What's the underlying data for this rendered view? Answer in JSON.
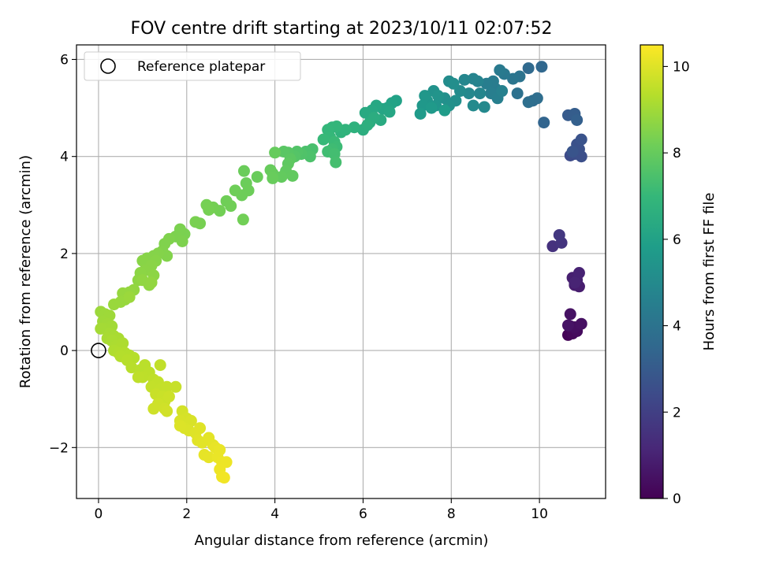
{
  "chart_data": {
    "type": "scatter",
    "title": "FOV centre drift starting at 2023/10/11 02:07:52",
    "xlabel": "Angular distance from reference (arcmin)",
    "ylabel": "Rotation from reference (arcmin)",
    "xlim": [
      -0.5,
      11.5
    ],
    "ylim": [
      -3.05,
      6.3
    ],
    "xticks": [
      0,
      2,
      4,
      6,
      8,
      10
    ],
    "yticks": [
      -2,
      0,
      2,
      4,
      6
    ],
    "xtick_labels": [
      "0",
      "2",
      "4",
      "6",
      "8",
      "10"
    ],
    "ytick_labels": [
      "−2",
      "0",
      "2",
      "4",
      "6"
    ],
    "grid": true,
    "legend": {
      "placement": "top-left",
      "entries": [
        {
          "label": "Reference platepar",
          "marker": "open-circle"
        }
      ]
    },
    "reference_point": {
      "x": 0,
      "y": 0
    },
    "colorbar": {
      "label": "Hours from first FF file",
      "range": [
        0,
        10.5
      ],
      "ticks": [
        0,
        2,
        4,
        6,
        8,
        10
      ],
      "tick_labels": [
        "0",
        "2",
        "4",
        "6",
        "8",
        "10"
      ],
      "colormap": "viridis",
      "stops": [
        "#440154",
        "#482878",
        "#3e4989",
        "#31688e",
        "#26828e",
        "#1f9e89",
        "#35b779",
        "#6ece58",
        "#b5de2b",
        "#fde725"
      ]
    },
    "points": [
      {
        "x": 10.65,
        "y": 0.32,
        "t": 0.1
      },
      {
        "x": 10.75,
        "y": 0.35,
        "t": 0.2
      },
      {
        "x": 10.85,
        "y": 0.4,
        "t": 0.3
      },
      {
        "x": 10.7,
        "y": 0.5,
        "t": 0.35
      },
      {
        "x": 10.8,
        "y": 0.48,
        "t": 0.4
      },
      {
        "x": 10.95,
        "y": 0.55,
        "t": 0.45
      },
      {
        "x": 10.7,
        "y": 0.75,
        "t": 0.5
      },
      {
        "x": 10.65,
        "y": 0.52,
        "t": 0.55
      },
      {
        "x": 10.8,
        "y": 1.35,
        "t": 0.8
      },
      {
        "x": 10.9,
        "y": 1.32,
        "t": 0.85
      },
      {
        "x": 10.75,
        "y": 1.5,
        "t": 0.9
      },
      {
        "x": 10.85,
        "y": 1.45,
        "t": 0.95
      },
      {
        "x": 10.9,
        "y": 1.6,
        "t": 1.0
      },
      {
        "x": 10.8,
        "y": 1.4,
        "t": 1.05
      },
      {
        "x": 10.3,
        "y": 2.15,
        "t": 1.5
      },
      {
        "x": 10.5,
        "y": 2.22,
        "t": 1.6
      },
      {
        "x": 10.45,
        "y": 2.38,
        "t": 1.7
      },
      {
        "x": 10.7,
        "y": 4.02,
        "t": 2.4
      },
      {
        "x": 10.8,
        "y": 4.05,
        "t": 2.5
      },
      {
        "x": 10.95,
        "y": 4.0,
        "t": 2.55
      },
      {
        "x": 10.9,
        "y": 4.15,
        "t": 2.6
      },
      {
        "x": 10.85,
        "y": 4.25,
        "t": 2.65
      },
      {
        "x": 10.95,
        "y": 4.35,
        "t": 2.7
      },
      {
        "x": 10.75,
        "y": 4.1,
        "t": 2.75
      },
      {
        "x": 10.65,
        "y": 4.85,
        "t": 3.0
      },
      {
        "x": 10.8,
        "y": 4.88,
        "t": 3.1
      },
      {
        "x": 10.85,
        "y": 4.75,
        "t": 3.2
      },
      {
        "x": 10.1,
        "y": 4.7,
        "t": 3.4
      },
      {
        "x": 10.05,
        "y": 5.85,
        "t": 3.5
      },
      {
        "x": 9.75,
        "y": 5.82,
        "t": 3.6
      },
      {
        "x": 9.85,
        "y": 5.15,
        "t": 3.7
      },
      {
        "x": 9.95,
        "y": 5.2,
        "t": 3.75
      },
      {
        "x": 9.75,
        "y": 5.12,
        "t": 3.8
      },
      {
        "x": 9.5,
        "y": 5.3,
        "t": 3.9
      },
      {
        "x": 9.55,
        "y": 5.65,
        "t": 4.0
      },
      {
        "x": 9.4,
        "y": 5.6,
        "t": 4.1
      },
      {
        "x": 9.2,
        "y": 5.7,
        "t": 4.2
      },
      {
        "x": 9.1,
        "y": 5.78,
        "t": 4.3
      },
      {
        "x": 9.0,
        "y": 5.4,
        "t": 4.35
      },
      {
        "x": 8.95,
        "y": 5.55,
        "t": 4.4
      },
      {
        "x": 8.8,
        "y": 5.5,
        "t": 4.45
      },
      {
        "x": 8.9,
        "y": 5.3,
        "t": 4.5
      },
      {
        "x": 9.05,
        "y": 5.2,
        "t": 4.55
      },
      {
        "x": 9.15,
        "y": 5.35,
        "t": 4.6
      },
      {
        "x": 8.6,
        "y": 5.55,
        "t": 4.7
      },
      {
        "x": 8.5,
        "y": 5.6,
        "t": 4.75
      },
      {
        "x": 8.65,
        "y": 5.3,
        "t": 4.8
      },
      {
        "x": 8.3,
        "y": 5.58,
        "t": 4.85
      },
      {
        "x": 8.4,
        "y": 5.3,
        "t": 4.9
      },
      {
        "x": 8.75,
        "y": 5.02,
        "t": 4.95
      },
      {
        "x": 8.5,
        "y": 5.05,
        "t": 5.0
      },
      {
        "x": 8.2,
        "y": 5.35,
        "t": 5.05
      },
      {
        "x": 7.95,
        "y": 5.55,
        "t": 5.1
      },
      {
        "x": 8.05,
        "y": 5.5,
        "t": 5.15
      },
      {
        "x": 8.1,
        "y": 5.15,
        "t": 5.2
      },
      {
        "x": 7.85,
        "y": 5.2,
        "t": 5.25
      },
      {
        "x": 7.95,
        "y": 5.05,
        "t": 5.3
      },
      {
        "x": 7.6,
        "y": 5.35,
        "t": 5.35
      },
      {
        "x": 7.7,
        "y": 5.25,
        "t": 5.4
      },
      {
        "x": 7.65,
        "y": 5.05,
        "t": 5.45
      },
      {
        "x": 7.45,
        "y": 5.15,
        "t": 5.5
      },
      {
        "x": 7.4,
        "y": 5.25,
        "t": 5.55
      },
      {
        "x": 7.35,
        "y": 5.05,
        "t": 5.6
      },
      {
        "x": 7.55,
        "y": 5.0,
        "t": 5.65
      },
      {
        "x": 7.3,
        "y": 4.88,
        "t": 5.7
      },
      {
        "x": 7.85,
        "y": 4.95,
        "t": 5.75
      },
      {
        "x": 6.75,
        "y": 5.15,
        "t": 6.0
      },
      {
        "x": 6.65,
        "y": 5.1,
        "t": 6.05
      },
      {
        "x": 6.55,
        "y": 5.0,
        "t": 6.1
      },
      {
        "x": 6.45,
        "y": 4.98,
        "t": 6.15
      },
      {
        "x": 6.6,
        "y": 4.92,
        "t": 6.2
      },
      {
        "x": 6.3,
        "y": 5.05,
        "t": 6.25
      },
      {
        "x": 6.2,
        "y": 4.95,
        "t": 6.3
      },
      {
        "x": 6.05,
        "y": 4.9,
        "t": 6.35
      },
      {
        "x": 6.4,
        "y": 4.75,
        "t": 6.4
      },
      {
        "x": 6.15,
        "y": 4.7,
        "t": 6.45
      },
      {
        "x": 6.25,
        "y": 4.8,
        "t": 6.5
      },
      {
        "x": 6.0,
        "y": 4.55,
        "t": 6.55
      },
      {
        "x": 6.1,
        "y": 4.65,
        "t": 6.6
      },
      {
        "x": 5.8,
        "y": 4.6,
        "t": 6.7
      },
      {
        "x": 5.5,
        "y": 4.5,
        "t": 6.75
      },
      {
        "x": 5.6,
        "y": 4.55,
        "t": 6.8
      },
      {
        "x": 5.3,
        "y": 4.6,
        "t": 6.85
      },
      {
        "x": 5.4,
        "y": 4.62,
        "t": 6.9
      },
      {
        "x": 5.2,
        "y": 4.55,
        "t": 6.95
      },
      {
        "x": 5.25,
        "y": 4.4,
        "t": 7.0
      },
      {
        "x": 5.1,
        "y": 4.35,
        "t": 7.05
      },
      {
        "x": 5.35,
        "y": 4.3,
        "t": 7.1
      },
      {
        "x": 5.4,
        "y": 4.2,
        "t": 7.15
      },
      {
        "x": 5.3,
        "y": 4.15,
        "t": 7.2
      },
      {
        "x": 5.2,
        "y": 4.1,
        "t": 7.25
      },
      {
        "x": 5.35,
        "y": 4.05,
        "t": 7.3
      },
      {
        "x": 5.38,
        "y": 3.88,
        "t": 7.35
      },
      {
        "x": 4.85,
        "y": 4.15,
        "t": 7.4
      },
      {
        "x": 4.7,
        "y": 4.1,
        "t": 7.45
      },
      {
        "x": 4.8,
        "y": 4.0,
        "t": 7.5
      },
      {
        "x": 4.6,
        "y": 4.05,
        "t": 7.55
      },
      {
        "x": 4.5,
        "y": 4.1,
        "t": 7.6
      },
      {
        "x": 4.45,
        "y": 4.0,
        "t": 7.65
      },
      {
        "x": 4.3,
        "y": 4.08,
        "t": 7.7
      },
      {
        "x": 4.2,
        "y": 4.1,
        "t": 7.75
      },
      {
        "x": 4.35,
        "y": 3.95,
        "t": 7.8
      },
      {
        "x": 4.3,
        "y": 3.85,
        "t": 7.85
      },
      {
        "x": 4.25,
        "y": 3.7,
        "t": 7.9
      },
      {
        "x": 4.4,
        "y": 3.6,
        "t": 7.92
      },
      {
        "x": 4.15,
        "y": 3.58,
        "t": 7.95
      },
      {
        "x": 3.95,
        "y": 3.65,
        "t": 7.98
      },
      {
        "x": 4.0,
        "y": 4.08,
        "t": 8.0
      },
      {
        "x": 3.9,
        "y": 3.72,
        "t": 8.02
      },
      {
        "x": 3.95,
        "y": 3.55,
        "t": 8.04
      },
      {
        "x": 3.6,
        "y": 3.58,
        "t": 8.06
      },
      {
        "x": 3.3,
        "y": 3.7,
        "t": 8.08
      },
      {
        "x": 3.35,
        "y": 3.45,
        "t": 8.1
      },
      {
        "x": 3.4,
        "y": 3.3,
        "t": 8.12
      },
      {
        "x": 3.25,
        "y": 3.2,
        "t": 8.14
      },
      {
        "x": 3.1,
        "y": 3.3,
        "t": 8.16
      },
      {
        "x": 2.9,
        "y": 3.08,
        "t": 8.18
      },
      {
        "x": 3.0,
        "y": 2.98,
        "t": 8.2
      },
      {
        "x": 3.28,
        "y": 2.7,
        "t": 8.22
      },
      {
        "x": 2.75,
        "y": 2.88,
        "t": 8.24
      },
      {
        "x": 2.6,
        "y": 2.95,
        "t": 8.26
      },
      {
        "x": 2.45,
        "y": 3.0,
        "t": 8.28
      },
      {
        "x": 2.5,
        "y": 2.9,
        "t": 8.3
      },
      {
        "x": 2.3,
        "y": 2.62,
        "t": 8.32
      },
      {
        "x": 2.2,
        "y": 2.65,
        "t": 8.34
      },
      {
        "x": 1.95,
        "y": 2.4,
        "t": 8.36
      },
      {
        "x": 1.85,
        "y": 2.5,
        "t": 8.38
      },
      {
        "x": 1.75,
        "y": 2.35,
        "t": 8.4
      },
      {
        "x": 1.9,
        "y": 2.25,
        "t": 8.42
      },
      {
        "x": 1.6,
        "y": 2.3,
        "t": 8.44
      },
      {
        "x": 1.5,
        "y": 2.2,
        "t": 8.46
      },
      {
        "x": 1.45,
        "y": 2.05,
        "t": 8.48
      },
      {
        "x": 1.55,
        "y": 1.95,
        "t": 8.5
      },
      {
        "x": 1.35,
        "y": 2.0,
        "t": 8.52
      },
      {
        "x": 1.25,
        "y": 1.95,
        "t": 8.54
      },
      {
        "x": 1.1,
        "y": 1.9,
        "t": 8.56
      },
      {
        "x": 1.3,
        "y": 1.85,
        "t": 8.58
      },
      {
        "x": 1.0,
        "y": 1.85,
        "t": 8.6
      },
      {
        "x": 1.2,
        "y": 1.75,
        "t": 8.62
      },
      {
        "x": 1.05,
        "y": 1.65,
        "t": 8.64
      },
      {
        "x": 0.95,
        "y": 1.6,
        "t": 8.66
      },
      {
        "x": 1.25,
        "y": 1.55,
        "t": 8.68
      },
      {
        "x": 0.9,
        "y": 1.45,
        "t": 8.7
      },
      {
        "x": 1.15,
        "y": 1.35,
        "t": 8.72
      },
      {
        "x": 1.0,
        "y": 1.45,
        "t": 8.74
      },
      {
        "x": 1.2,
        "y": 1.4,
        "t": 8.76
      },
      {
        "x": 0.8,
        "y": 1.25,
        "t": 8.78
      },
      {
        "x": 0.7,
        "y": 1.2,
        "t": 8.8
      },
      {
        "x": 0.55,
        "y": 1.18,
        "t": 8.82
      },
      {
        "x": 0.6,
        "y": 1.05,
        "t": 8.84
      },
      {
        "x": 0.5,
        "y": 1.0,
        "t": 8.86
      },
      {
        "x": 0.35,
        "y": 0.95,
        "t": 8.88
      },
      {
        "x": 0.7,
        "y": 1.1,
        "t": 8.9
      },
      {
        "x": 0.05,
        "y": 0.8,
        "t": 8.92
      },
      {
        "x": 0.15,
        "y": 0.75,
        "t": 8.94
      },
      {
        "x": 0.25,
        "y": 0.72,
        "t": 8.96
      },
      {
        "x": 0.1,
        "y": 0.6,
        "t": 8.98
      },
      {
        "x": 0.2,
        "y": 0.55,
        "t": 9.0
      },
      {
        "x": 0.3,
        "y": 0.5,
        "t": 9.02
      },
      {
        "x": 0.15,
        "y": 0.45,
        "t": 9.04
      },
      {
        "x": 0.05,
        "y": 0.45,
        "t": 9.06
      },
      {
        "x": 0.25,
        "y": 0.35,
        "t": 9.08
      },
      {
        "x": 0.35,
        "y": 0.3,
        "t": 9.1
      },
      {
        "x": 0.2,
        "y": 0.25,
        "t": 9.12
      },
      {
        "x": 0.45,
        "y": 0.25,
        "t": 9.14
      },
      {
        "x": 0.3,
        "y": 0.2,
        "t": 9.16
      },
      {
        "x": 0.4,
        "y": 0.1,
        "t": 9.18
      },
      {
        "x": 0.55,
        "y": 0.15,
        "t": 9.2
      },
      {
        "x": 0.5,
        "y": 0.05,
        "t": 9.22
      },
      {
        "x": 0.35,
        "y": 0.0,
        "t": 9.24
      },
      {
        "x": 0.45,
        "y": -0.05,
        "t": 9.26
      },
      {
        "x": 0.6,
        "y": -0.05,
        "t": 9.28
      },
      {
        "x": 0.7,
        "y": -0.1,
        "t": 9.3
      },
      {
        "x": 0.5,
        "y": -0.12,
        "t": 9.32
      },
      {
        "x": 0.8,
        "y": -0.15,
        "t": 9.34
      },
      {
        "x": 0.65,
        "y": -0.2,
        "t": 9.36
      },
      {
        "x": 0.75,
        "y": -0.35,
        "t": 9.38
      },
      {
        "x": 0.95,
        "y": -0.4,
        "t": 9.4
      },
      {
        "x": 1.05,
        "y": -0.3,
        "t": 9.42
      },
      {
        "x": 1.15,
        "y": -0.45,
        "t": 9.44
      },
      {
        "x": 1.0,
        "y": -0.55,
        "t": 9.46
      },
      {
        "x": 0.9,
        "y": -0.55,
        "t": 9.48
      },
      {
        "x": 1.25,
        "y": -0.6,
        "t": 9.5
      },
      {
        "x": 1.4,
        "y": -0.3,
        "t": 9.52
      },
      {
        "x": 1.35,
        "y": -0.65,
        "t": 9.54
      },
      {
        "x": 1.2,
        "y": -0.75,
        "t": 9.56
      },
      {
        "x": 1.4,
        "y": -0.8,
        "t": 9.58
      },
      {
        "x": 1.55,
        "y": -0.75,
        "t": 9.6
      },
      {
        "x": 1.75,
        "y": -0.75,
        "t": 9.62
      },
      {
        "x": 1.3,
        "y": -0.9,
        "t": 9.64
      },
      {
        "x": 1.45,
        "y": -0.95,
        "t": 9.66
      },
      {
        "x": 1.5,
        "y": -1.05,
        "t": 9.68
      },
      {
        "x": 1.6,
        "y": -0.95,
        "t": 9.7
      },
      {
        "x": 1.35,
        "y": -1.1,
        "t": 9.72
      },
      {
        "x": 1.25,
        "y": -1.2,
        "t": 9.74
      },
      {
        "x": 1.5,
        "y": -1.2,
        "t": 9.76
      },
      {
        "x": 1.55,
        "y": -1.25,
        "t": 9.78
      },
      {
        "x": 1.9,
        "y": -1.25,
        "t": 9.82
      },
      {
        "x": 2.0,
        "y": -1.4,
        "t": 9.85
      },
      {
        "x": 1.85,
        "y": -1.45,
        "t": 9.88
      },
      {
        "x": 2.1,
        "y": -1.45,
        "t": 9.9
      },
      {
        "x": 1.95,
        "y": -1.6,
        "t": 9.92
      },
      {
        "x": 2.05,
        "y": -1.65,
        "t": 9.95
      },
      {
        "x": 1.85,
        "y": -1.55,
        "t": 9.97
      },
      {
        "x": 2.2,
        "y": -1.7,
        "t": 10.0
      },
      {
        "x": 2.3,
        "y": -1.6,
        "t": 10.02
      },
      {
        "x": 2.25,
        "y": -1.85,
        "t": 10.04
      },
      {
        "x": 2.35,
        "y": -1.9,
        "t": 10.06
      },
      {
        "x": 2.5,
        "y": -1.8,
        "t": 10.08
      },
      {
        "x": 2.6,
        "y": -1.95,
        "t": 10.1
      },
      {
        "x": 2.4,
        "y": -2.15,
        "t": 10.12
      },
      {
        "x": 2.5,
        "y": -2.2,
        "t": 10.14
      },
      {
        "x": 2.65,
        "y": -2.0,
        "t": 10.16
      },
      {
        "x": 2.75,
        "y": -2.05,
        "t": 10.18
      },
      {
        "x": 2.7,
        "y": -2.2,
        "t": 10.2
      },
      {
        "x": 2.8,
        "y": -2.3,
        "t": 10.22
      },
      {
        "x": 2.9,
        "y": -2.3,
        "t": 10.24
      },
      {
        "x": 2.75,
        "y": -2.45,
        "t": 10.26
      },
      {
        "x": 2.8,
        "y": -2.6,
        "t": 10.28
      },
      {
        "x": 2.85,
        "y": -2.62,
        "t": 10.3
      }
    ]
  }
}
